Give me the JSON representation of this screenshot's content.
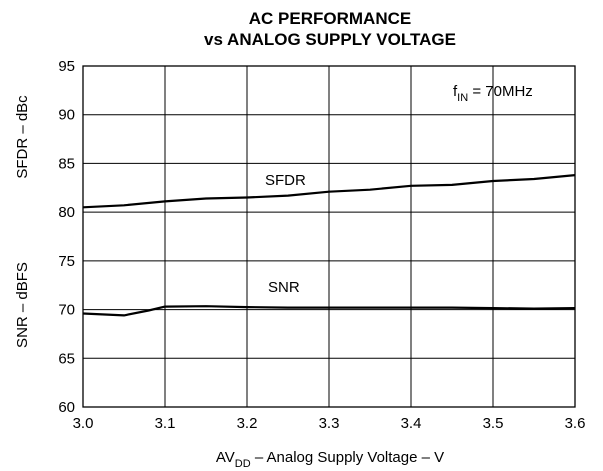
{
  "chart_data": {
    "type": "line",
    "title_line1": "AC PERFORMANCE",
    "title_line2": "vs ANALOG SUPPLY VOLTAGE",
    "xlabel": {
      "pre": "AV",
      "sub": "DD",
      "post": " – Analog Supply Voltage – V"
    },
    "ylabel_top": "SFDR – dBc",
    "ylabel_bottom": "SNR – dBFS",
    "xlim": [
      3.0,
      3.6
    ],
    "ylim": [
      60,
      95
    ],
    "x_ticks": [
      3.0,
      3.1,
      3.2,
      3.3,
      3.4,
      3.5,
      3.6
    ],
    "x_tick_labels": [
      "3.0",
      "3.1",
      "3.2",
      "3.3",
      "3.4",
      "3.5",
      "3.6"
    ],
    "y_ticks": [
      60,
      65,
      70,
      75,
      80,
      85,
      90,
      95
    ],
    "y_tick_labels": [
      "60",
      "65",
      "70",
      "75",
      "80",
      "85",
      "90",
      "95"
    ],
    "grid": true,
    "annotation": {
      "pre": "f",
      "sub": "IN",
      "post": " = 70MHz"
    },
    "series": [
      {
        "name": "SFDR",
        "x": [
          3.0,
          3.05,
          3.1,
          3.15,
          3.2,
          3.25,
          3.3,
          3.35,
          3.4,
          3.45,
          3.5,
          3.55,
          3.6
        ],
        "y": [
          80.5,
          80.7,
          81.1,
          81.4,
          81.5,
          81.7,
          82.1,
          82.3,
          82.7,
          82.8,
          83.2,
          83.4,
          83.8
        ]
      },
      {
        "name": "SNR",
        "x": [
          3.0,
          3.05,
          3.08,
          3.1,
          3.15,
          3.2,
          3.25,
          3.3,
          3.35,
          3.4,
          3.45,
          3.5,
          3.55,
          3.6
        ],
        "y": [
          69.6,
          69.4,
          69.9,
          70.3,
          70.35,
          70.25,
          70.2,
          70.2,
          70.2,
          70.2,
          70.2,
          70.15,
          70.1,
          70.15
        ]
      }
    ]
  }
}
